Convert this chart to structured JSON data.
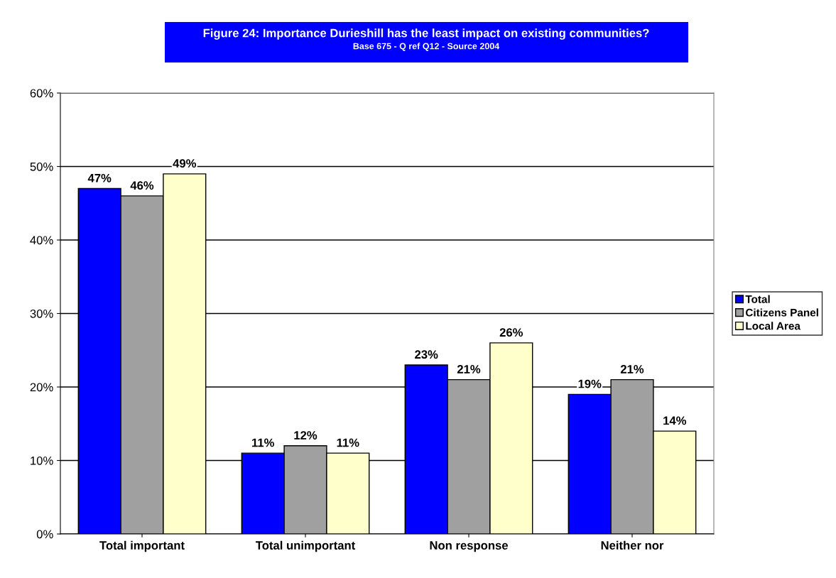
{
  "chart_data": {
    "type": "bar",
    "title": "Figure 24: Importance Durieshill has the least impact on existing communities?",
    "subtitle": "Base 675 - Q ref Q12 - Source 2004",
    "categories": [
      "Total important",
      "Total unimportant",
      "Non response",
      "Neither nor"
    ],
    "series": [
      {
        "name": "Total",
        "color": "#0000ff",
        "values": [
          47,
          11,
          23,
          19
        ],
        "value_labels": [
          "47%",
          "11%",
          "23%",
          "19%"
        ]
      },
      {
        "name": "Citizens Panel",
        "color": "#a0a0a0",
        "values": [
          46,
          12,
          21,
          21
        ],
        "value_labels": [
          "46%",
          "12%",
          "21%",
          "21%"
        ]
      },
      {
        "name": "Local Area",
        "color": "#ffffcc",
        "values": [
          49,
          11,
          26,
          14
        ],
        "value_labels": [
          "49%",
          "11%",
          "26%",
          "14%"
        ]
      }
    ],
    "ylim": [
      0,
      60
    ],
    "yticks": [
      {
        "value": 0,
        "label": "0%"
      },
      {
        "value": 10,
        "label": "10%"
      },
      {
        "value": 20,
        "label": "20%"
      },
      {
        "value": 30,
        "label": "30%"
      },
      {
        "value": 40,
        "label": "40%"
      },
      {
        "value": 50,
        "label": "50%"
      },
      {
        "value": 60,
        "label": "60%"
      }
    ],
    "grid": "y",
    "legend": "right"
  }
}
